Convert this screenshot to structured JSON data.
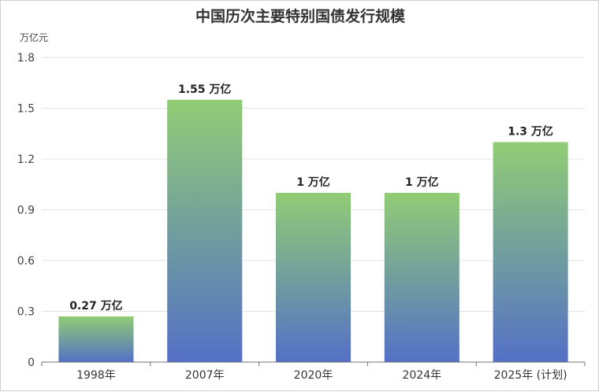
{
  "chart_data": {
    "type": "bar",
    "title": "中国历次主要特别国债发行规模",
    "ylabel": "万亿元",
    "xlabel": "",
    "ylim": [
      0,
      1.8
    ],
    "yticks": [
      "0",
      "0.3",
      "0.6",
      "0.9",
      "1.2",
      "1.5",
      "1.8"
    ],
    "ytick_values": [
      0,
      0.3,
      0.6,
      0.9,
      1.2,
      1.5,
      1.8
    ],
    "categories": [
      "1998年",
      "2007年",
      "2020年",
      "2024年",
      "2025年 (计划)"
    ],
    "values": [
      0.27,
      1.55,
      1,
      1,
      1.3
    ],
    "data_labels": [
      "0.27 万亿",
      "1.55 万亿",
      "1 万亿",
      "1 万亿",
      "1.3 万亿"
    ],
    "grid": true,
    "legend": "none",
    "colors": {
      "bar_top": "#91cc75",
      "bar_bottom": "#5470c6"
    }
  }
}
